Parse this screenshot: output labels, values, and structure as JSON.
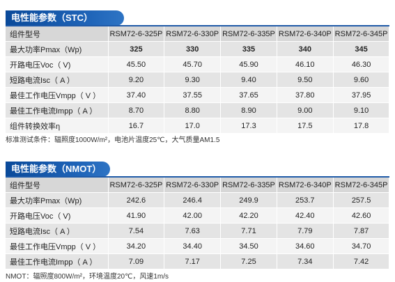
{
  "stc": {
    "title": "电性能参数（STC）",
    "models": [
      "RSM72-6-325P",
      "RSM72-6-330P",
      "RSM72-6-335P",
      "RSM72-6-340P",
      "RSM72-6-345P"
    ],
    "header_label": "组件型号",
    "rows": [
      {
        "label": "最大功率Pmax（Wp)",
        "values": [
          "325",
          "330",
          "335",
          "340",
          "345"
        ]
      },
      {
        "label": "开路电压Voc（ V)",
        "values": [
          "45.50",
          "45.70",
          "45.90",
          "46.10",
          "46.30"
        ]
      },
      {
        "label": "短路电流Isc（ A ）",
        "values": [
          "9.20",
          "9.30",
          "9.40",
          "9.50",
          "9.60"
        ]
      },
      {
        "label": "最佳工作电压Vmpp（ V ）",
        "values": [
          "37.40",
          "37.55",
          "37.65",
          "37.80",
          "37.95"
        ]
      },
      {
        "label": "最佳工作电流Impp（ A ）",
        "values": [
          "8.70",
          "8.80",
          "8.90",
          "9.00",
          "9.10"
        ]
      },
      {
        "label": "组件转换效率η",
        "values": [
          "16.7",
          "17.0",
          "17.3",
          "17.5",
          "17.8"
        ]
      }
    ],
    "note": "标准测试条件：辐照度1000W/m²，电池片温度25℃，大气质量AM1.5"
  },
  "nmot": {
    "title": "电性能参数（NMOT）",
    "models": [
      "RSM72-6-325P",
      "RSM72-6-330P",
      "RSM72-6-335P",
      "RSM72-6-340P",
      "RSM72-6-345P"
    ],
    "header_label": "组件型号",
    "rows": [
      {
        "label": "最大功率Pmax（Wp)",
        "values": [
          "242.6",
          "246.4",
          "249.9",
          "253.7",
          "257.5"
        ]
      },
      {
        "label": "开路电压Voc（ V)",
        "values": [
          "41.90",
          "42.00",
          "42.20",
          "42.40",
          "42.60"
        ]
      },
      {
        "label": "短路电流Isc（ A ）",
        "values": [
          "7.54",
          "7.63",
          "7.71",
          "7.79",
          "7.87"
        ]
      },
      {
        "label": "最佳工作电压Vmpp（ V ）",
        "values": [
          "34.20",
          "34.40",
          "34.50",
          "34.60",
          "34.70"
        ]
      },
      {
        "label": "最佳工作电流Impp（ A ）",
        "values": [
          "7.09",
          "7.17",
          "7.25",
          "7.34",
          "7.42"
        ]
      }
    ],
    "note": "NMOT：辐照度800W/m²，环境温度20℃，风速1m/s"
  },
  "colors": {
    "header_blue": "#1f5aa8",
    "row_dark": "#e4e4e4",
    "row_light": "#f4f4f4"
  }
}
